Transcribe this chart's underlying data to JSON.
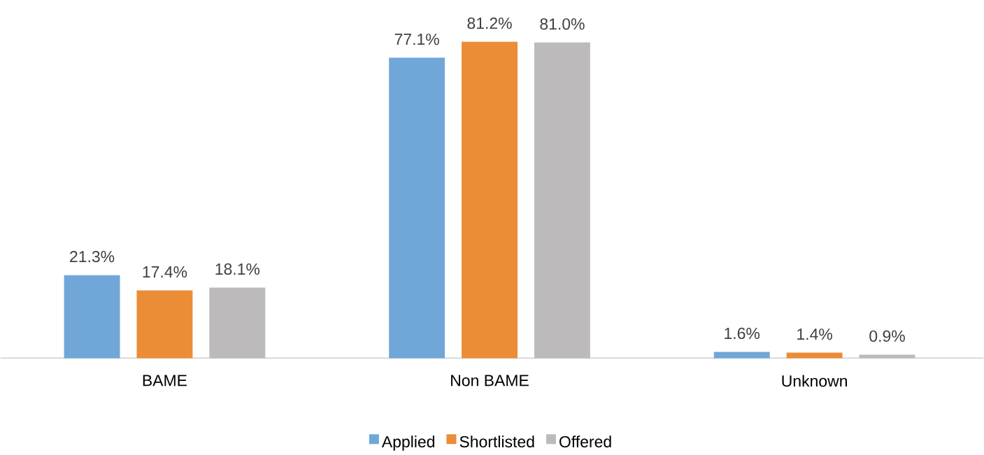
{
  "chart_data": {
    "type": "bar",
    "categories": [
      "BAME",
      "Non BAME",
      "Unknown"
    ],
    "series": [
      {
        "name": "Applied",
        "color": "#70a7d8",
        "values": [
          21.3,
          77.1,
          1.6
        ],
        "value_labels": [
          "21.3%",
          "77.1%",
          "1.6%"
        ]
      },
      {
        "name": "Shortlisted",
        "color": "#eb8c36",
        "values": [
          17.4,
          81.2,
          1.4
        ],
        "value_labels": [
          "17.4%",
          "81.2%",
          "1.4%"
        ]
      },
      {
        "name": "Offered",
        "color": "#bcbaba",
        "values": [
          18.1,
          81.0,
          0.9
        ],
        "value_labels": [
          "18.1%",
          "81.0%",
          "0.9%"
        ]
      }
    ],
    "legend": "bottom"
  }
}
